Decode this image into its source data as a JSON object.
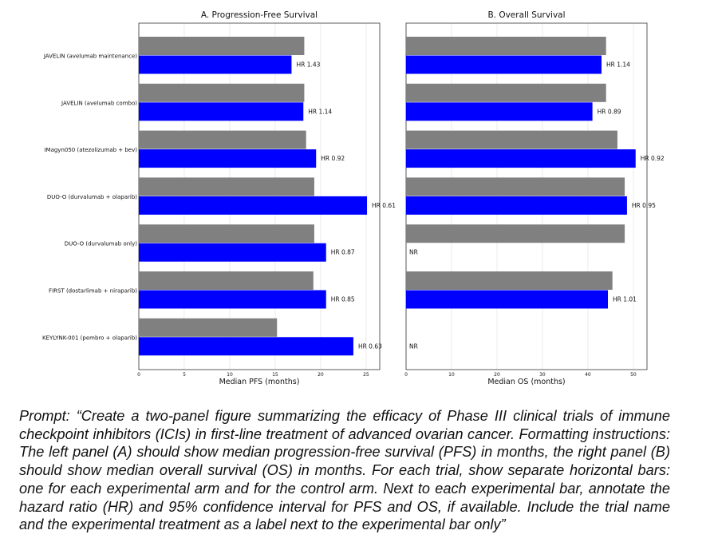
{
  "chart_data": {
    "type": "bar",
    "orientation": "horizontal",
    "colors": {
      "control": "#808080",
      "experimental": "#0000ff"
    },
    "trials": [
      "JAVELIN (avelumab maintenance)",
      "JAVELIN (avelumab combo)",
      "IMagyn050 (atezolizumab + bev)",
      "DUO-O (durvalumab + olaparib)",
      "DUO-O (durvalumab only)",
      "FIRST (dostarlimab + niraparib)",
      "KEYLYNK-001 (pembro + olaparib)"
    ],
    "panels": [
      {
        "title": "A. Progression-Free Survival",
        "xlabel": "Median PFS (months)",
        "xlim": [
          0,
          26.5
        ],
        "xticks": [
          0,
          5,
          10,
          15,
          20,
          25
        ],
        "control": [
          18.2,
          18.2,
          18.4,
          19.3,
          19.3,
          19.2,
          15.2
        ],
        "experimental": [
          16.8,
          18.1,
          19.5,
          25.1,
          20.6,
          20.6,
          23.6
        ],
        "annotations": [
          "HR 1.43",
          "HR 1.14",
          "HR 0.92",
          "HR 0.61",
          "HR 0.87",
          "HR 0.85",
          "HR 0.63"
        ]
      },
      {
        "title": "B. Overall Survival",
        "xlabel": "Median OS (months)",
        "xlim": [
          0,
          53
        ],
        "xticks": [
          0,
          10,
          20,
          30,
          40,
          50
        ],
        "control": [
          44.0,
          44.0,
          46.5,
          48.1,
          48.1,
          45.4,
          null
        ],
        "experimental": [
          43.0,
          41.0,
          50.5,
          48.6,
          null,
          44.4,
          null
        ],
        "annotations": [
          "HR 1.14",
          "HR 0.89",
          "HR 0.92",
          "HR 0.95",
          "NR",
          "HR 1.01",
          "NR"
        ]
      }
    ]
  },
  "caption": {
    "text": "Prompt: “Create a two-panel figure summarizing the efficacy of Phase III clinical trials of immune checkpoint inhibitors (ICIs) in first-line treatment of advanced ovarian cancer. Formatting instructions: The left panel (A) should show median progression-free survival (PFS) in months, the right panel (B) should show median overall survival (OS) in months. For each trial, show separate horizontal bars: one for each experimental arm and for the control arm. Next to each experimental bar, annotate the hazard ratio (HR) and 95% confidence interval for PFS and OS, if available. Include the trial name and the experimental treatment as a label next to the experimental bar only”"
  }
}
